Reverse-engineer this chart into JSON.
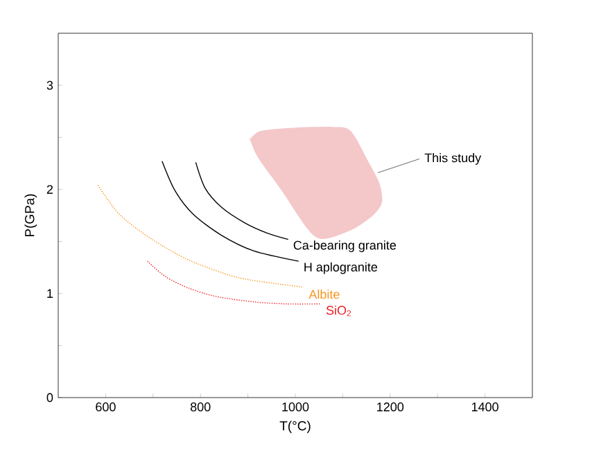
{
  "chart_data": {
    "type": "line",
    "xlabel": "T(°C)",
    "ylabel": "P(GPa)",
    "xlim": [
      500,
      1500
    ],
    "ylim": [
      0,
      3.5
    ],
    "xticks": [
      600,
      {
        "value": 700,
        "label": null
      },
      800,
      {
        "value": 900,
        "label": null
      },
      1000,
      {
        "value": 1100,
        "label": null
      },
      1200,
      {
        "value": 1300,
        "label": null
      },
      1400
    ],
    "yticks": [
      0,
      {
        "value": 0.5,
        "label": null
      },
      1,
      {
        "value": 1.5,
        "label": null
      },
      2,
      {
        "value": 2.5,
        "label": null
      },
      3
    ],
    "grid": false,
    "marker": "none",
    "series": [
      {
        "type": "area",
        "color": "#f4c7c9",
        "x": [
          904,
          926,
          990,
          1078,
          1117,
          1156,
          1178,
          1183,
          1166,
          1127,
          1078,
          1049,
          1024,
          971,
          922,
          904
        ],
        "values": [
          2.48,
          2.56,
          2.59,
          2.6,
          2.56,
          2.25,
          2.05,
          1.88,
          1.76,
          1.63,
          1.54,
          1.53,
          1.63,
          1.99,
          2.3,
          2.48
        ]
      },
      {
        "name": "Ca-bearing granite",
        "color": "#000000",
        "line_style": "solid",
        "x": [
          790,
          810,
          844,
          893,
          941,
          985
        ],
        "values": [
          2.26,
          2.01,
          1.83,
          1.68,
          1.58,
          1.52
        ]
      },
      {
        "name": "H aplogranite",
        "color": "#000000",
        "line_style": "solid",
        "x": [
          719,
          746,
          785,
          844,
          912,
          1007
        ],
        "values": [
          2.27,
          1.99,
          1.76,
          1.56,
          1.41,
          1.31
        ]
      },
      {
        "name": "Albite",
        "color": "#f7941d",
        "line_style": "dotted",
        "x": [
          584,
          629,
          698,
          776,
          873,
          951,
          1018
        ],
        "values": [
          2.04,
          1.76,
          1.52,
          1.32,
          1.16,
          1.1,
          1.06
        ]
      },
      {
        "name": "SiO$_{2}$",
        "color": "#ed1c24",
        "line_style": "dotted",
        "x": [
          688,
          727,
          776,
          834,
          912,
          980,
          1054
        ],
        "values": [
          1.31,
          1.16,
          1.05,
          0.97,
          0.92,
          0.9,
          0.9
        ]
      }
    ],
    "annotations": [
      {
        "text": "This study",
        "x": 1174,
        "y": 2.16
      }
    ]
  }
}
